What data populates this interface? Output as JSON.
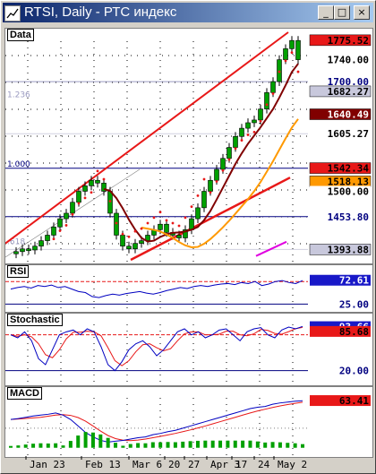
{
  "window": {
    "title": "RTSI, Daily - РТС индекс"
  },
  "titlebar_buttons": [
    "_",
    "□",
    "×"
  ],
  "price_pane": {
    "label": "Data",
    "fib_labels": [
      "1.236",
      "1.000",
      ".618"
    ],
    "right_labels": [
      {
        "text": "1775.52",
        "bg": "#e81818",
        "fg": "#000000"
      },
      {
        "text": "1740.00",
        "bg": "#ffffff",
        "fg": "#000000"
      },
      {
        "text": "1700.00",
        "bg": "#ffffff",
        "fg": "#000080"
      },
      {
        "text": "1682.27",
        "bg": "#c8c8dc",
        "fg": "#000000"
      },
      {
        "text": "1640.49",
        "bg": "#800000",
        "fg": "#ffffff"
      },
      {
        "text": "1605.27",
        "bg": "#ffffff",
        "fg": "#000000"
      },
      {
        "text": "1542.34",
        "bg": "#e81818",
        "fg": "#000000"
      },
      {
        "text": "1518.13",
        "bg": "#ff9900",
        "fg": "#000000"
      },
      {
        "text": "1500.00",
        "bg": "#ffffff",
        "fg": "#000000"
      },
      {
        "text": "1453.80",
        "bg": "#ffffff",
        "fg": "#000080"
      },
      {
        "text": "1393.88",
        "bg": "#c8c8dc",
        "fg": "#000000"
      }
    ]
  },
  "rsi_pane": {
    "label": "RSI",
    "right_labels": [
      {
        "text": "72.61",
        "bg": "#1818c8",
        "fg": "#ffffff"
      },
      {
        "text": "25.00",
        "bg": "#ffffff",
        "fg": "#000080"
      }
    ]
  },
  "stoch_pane": {
    "label": "Stochastic",
    "right_labels": [
      {
        "text": "93.66",
        "bg": "#1818c8",
        "fg": "#ffffff"
      },
      {
        "text": "85.68",
        "bg": "#e81818",
        "fg": "#000000"
      },
      {
        "text": "20.00",
        "bg": "#ffffff",
        "fg": "#000080"
      }
    ]
  },
  "macd_pane": {
    "label": "MACD",
    "right_labels": [
      {
        "text": "63.41",
        "bg": "#e81818",
        "fg": "#000000"
      }
    ]
  },
  "xaxis_labels": [
    "Jan 23",
    "Feb 13",
    "Mar 6",
    "20",
    "27",
    "Apr 3",
    "17",
    "24",
    "May 2"
  ],
  "colors": {
    "title_bg": "#0a246a",
    "candle": "#00a000",
    "trend": "#e81818",
    "ma_dark": "#800000",
    "ma_orange": "#ff9900",
    "sar": "#e81818"
  },
  "chart_data": {
    "type": "line",
    "title": "RTSI, Daily",
    "series": [
      {
        "name": "RTSI",
        "values": [
          1390,
          1395,
          1393,
          1400,
          1410,
          1420,
          1435,
          1450,
          1460,
          1480,
          1500,
          1510,
          1520,
          1515,
          1500,
          1460,
          1420,
          1400,
          1395,
          1405,
          1410,
          1420,
          1430,
          1440,
          1425,
          1420,
          1415,
          1430,
          1450,
          1470,
          1500,
          1520,
          1540,
          1560,
          1580,
          1600,
          1615,
          1625,
          1630,
          1650,
          1680,
          1700,
          1740,
          1760,
          1775,
          1740
        ]
      }
    ],
    "ylim": [
      1375,
      1790
    ],
    "indicators": {
      "rsi_last": 72.61,
      "stoch_k": 93.66,
      "stoch_d": 85.68,
      "macd_last": 63.41
    }
  }
}
